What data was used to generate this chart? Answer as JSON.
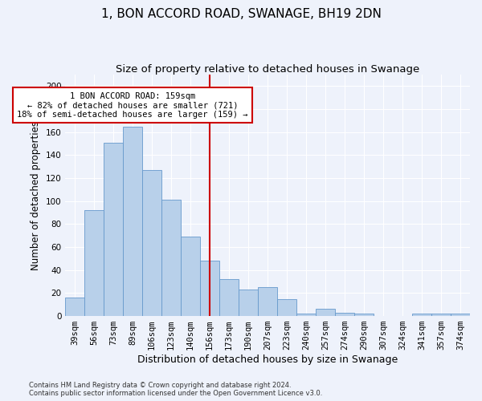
{
  "title": "1, BON ACCORD ROAD, SWANAGE, BH19 2DN",
  "subtitle": "Size of property relative to detached houses in Swanage",
  "xlabel": "Distribution of detached houses by size in Swanage",
  "ylabel": "Number of detached properties",
  "categories": [
    "39sqm",
    "56sqm",
    "73sqm",
    "89sqm",
    "106sqm",
    "123sqm",
    "140sqm",
    "156sqm",
    "173sqm",
    "190sqm",
    "207sqm",
    "223sqm",
    "240sqm",
    "257sqm",
    "274sqm",
    "290sqm",
    "307sqm",
    "324sqm",
    "341sqm",
    "357sqm",
    "374sqm"
  ],
  "values": [
    16,
    92,
    151,
    165,
    127,
    101,
    69,
    48,
    32,
    23,
    25,
    15,
    2,
    6,
    3,
    2,
    0,
    0,
    2,
    2,
    2
  ],
  "bar_color": "#b8d0ea",
  "bar_edge_color": "#6699cc",
  "vline_index": 7,
  "ylim": [
    0,
    210
  ],
  "yticks": [
    0,
    20,
    40,
    60,
    80,
    100,
    120,
    140,
    160,
    180,
    200
  ],
  "annotation_text": "1 BON ACCORD ROAD: 159sqm\n← 82% of detached houses are smaller (721)\n18% of semi-detached houses are larger (159) →",
  "annotation_box_color": "#ffffff",
  "annotation_box_edge": "#cc0000",
  "vline_color": "#cc0000",
  "footer": "Contains HM Land Registry data © Crown copyright and database right 2024.\nContains public sector information licensed under the Open Government Licence v3.0.",
  "title_fontsize": 11,
  "subtitle_fontsize": 9.5,
  "tick_fontsize": 7.5,
  "ylabel_fontsize": 8.5,
  "xlabel_fontsize": 9,
  "annotation_fontsize": 7.5,
  "footer_fontsize": 6,
  "background_color": "#eef2fb"
}
